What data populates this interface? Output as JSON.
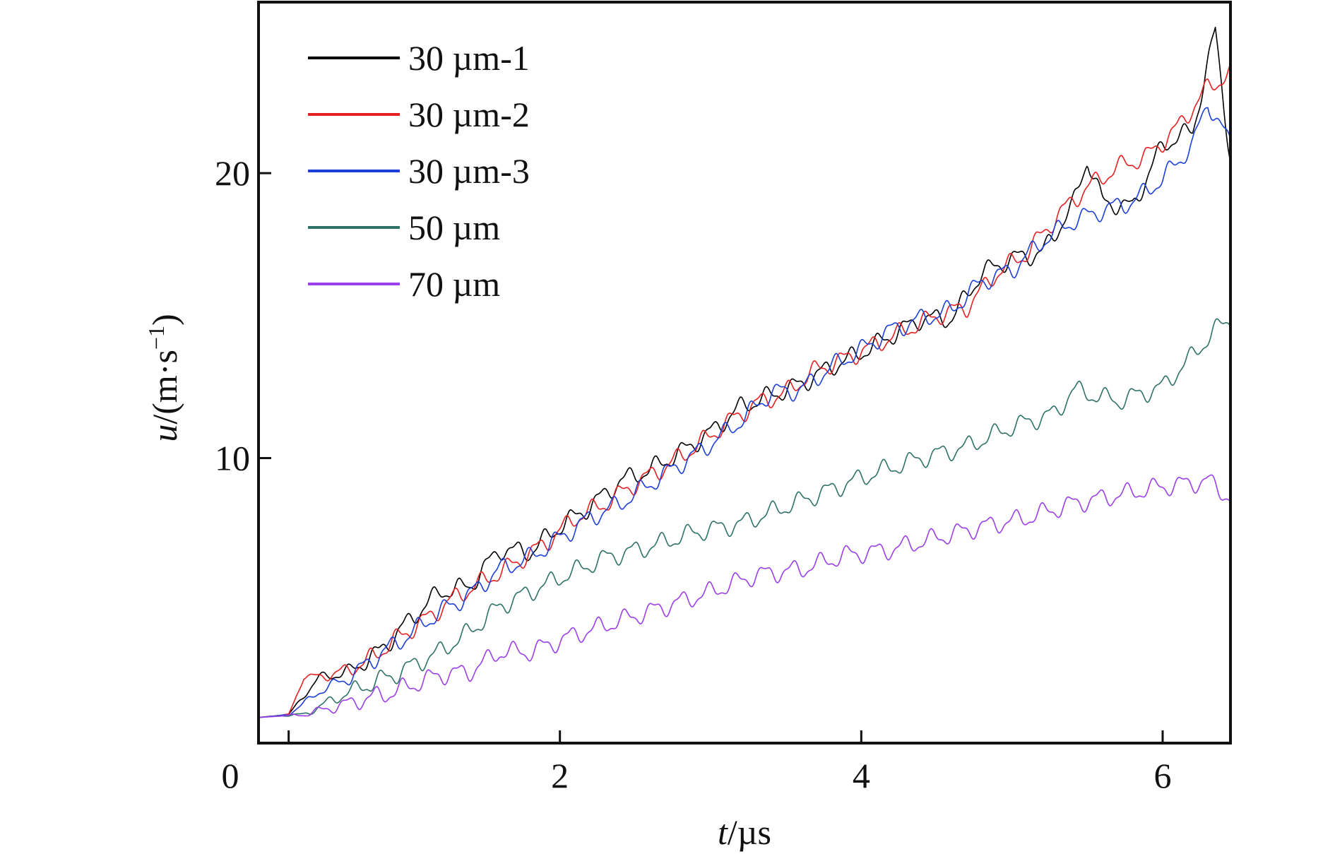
{
  "chart_data": {
    "type": "line",
    "xlabel": {
      "italic": "t",
      "rest": "/µs"
    },
    "ylabel": {
      "italic": "u",
      "rest": "/(m·s",
      "sup": "−1",
      "close": ")"
    },
    "xlim": [
      0,
      6.45
    ],
    "ylim": [
      0,
      26
    ],
    "xticks": [
      0,
      2,
      4,
      6
    ],
    "yticks": [
      10,
      20
    ],
    "legend_position": "top-left",
    "grid": false,
    "series": [
      {
        "name": "30 µm-1",
        "color": "#000000",
        "points": [
          [
            0,
            0.9
          ],
          [
            0.2,
            1.0
          ],
          [
            0.4,
            2.3
          ],
          [
            0.6,
            2.5
          ],
          [
            0.8,
            3.2
          ],
          [
            1.0,
            4.3
          ],
          [
            1.2,
            5.3
          ],
          [
            1.4,
            5.5
          ],
          [
            1.6,
            6.8
          ],
          [
            1.8,
            6.7
          ],
          [
            2.0,
            7.6
          ],
          [
            2.2,
            8.3
          ],
          [
            2.4,
            9.2
          ],
          [
            2.6,
            9.6
          ],
          [
            2.8,
            10.2
          ],
          [
            3.0,
            10.9
          ],
          [
            3.2,
            11.8
          ],
          [
            3.4,
            12.2
          ],
          [
            3.6,
            12.6
          ],
          [
            3.8,
            13.2
          ],
          [
            4.0,
            13.7
          ],
          [
            4.2,
            14.3
          ],
          [
            4.4,
            14.9
          ],
          [
            4.6,
            14.9
          ],
          [
            4.8,
            16.5
          ],
          [
            5.0,
            17.0
          ],
          [
            5.2,
            17.2
          ],
          [
            5.4,
            18.8
          ],
          [
            5.5,
            20.5
          ],
          [
            5.6,
            19.0
          ],
          [
            5.8,
            18.8
          ],
          [
            6.0,
            21.0
          ],
          [
            6.2,
            21.5
          ],
          [
            6.35,
            25.0
          ],
          [
            6.45,
            20.5
          ]
        ]
      },
      {
        "name": "30 µm-2",
        "color": "#e52020",
        "points": [
          [
            0,
            0.9
          ],
          [
            0.2,
            1.0
          ],
          [
            0.3,
            2.3
          ],
          [
            0.5,
            2.4
          ],
          [
            0.7,
            2.8
          ],
          [
            0.9,
            3.6
          ],
          [
            1.1,
            4.3
          ],
          [
            1.3,
            5.1
          ],
          [
            1.5,
            5.7
          ],
          [
            1.7,
            6.3
          ],
          [
            1.9,
            7.0
          ],
          [
            2.1,
            7.9
          ],
          [
            2.3,
            8.4
          ],
          [
            2.5,
            9.1
          ],
          [
            2.7,
            9.7
          ],
          [
            2.9,
            10.4
          ],
          [
            3.1,
            11.2
          ],
          [
            3.3,
            11.9
          ],
          [
            3.5,
            12.3
          ],
          [
            3.7,
            13.1
          ],
          [
            3.9,
            13.5
          ],
          [
            4.1,
            14.0
          ],
          [
            4.3,
            14.5
          ],
          [
            4.5,
            15.0
          ],
          [
            4.7,
            15.3
          ],
          [
            4.9,
            16.5
          ],
          [
            5.1,
            17.2
          ],
          [
            5.3,
            18.5
          ],
          [
            5.5,
            19.5
          ],
          [
            5.7,
            20.2
          ],
          [
            5.9,
            20.6
          ],
          [
            6.1,
            21.6
          ],
          [
            6.3,
            23.0
          ],
          [
            6.45,
            23.5
          ]
        ]
      },
      {
        "name": "30 µm-3",
        "color": "#1c3fd8",
        "points": [
          [
            0,
            0.9
          ],
          [
            0.2,
            1.0
          ],
          [
            0.4,
            1.8
          ],
          [
            0.6,
            2.3
          ],
          [
            0.8,
            3.1
          ],
          [
            1.0,
            3.8
          ],
          [
            1.2,
            4.6
          ],
          [
            1.4,
            5.2
          ],
          [
            1.6,
            6.1
          ],
          [
            1.8,
            6.5
          ],
          [
            2.0,
            7.2
          ],
          [
            2.2,
            7.9
          ],
          [
            2.4,
            8.4
          ],
          [
            2.6,
            9.1
          ],
          [
            2.8,
            9.8
          ],
          [
            3.0,
            10.5
          ],
          [
            3.2,
            11.3
          ],
          [
            3.4,
            12.3
          ],
          [
            3.6,
            12.4
          ],
          [
            3.8,
            13.2
          ],
          [
            4.0,
            13.8
          ],
          [
            4.2,
            14.5
          ],
          [
            4.4,
            14.9
          ],
          [
            4.6,
            15.2
          ],
          [
            4.8,
            16.2
          ],
          [
            5.0,
            16.6
          ],
          [
            5.2,
            17.6
          ],
          [
            5.4,
            18.3
          ],
          [
            5.6,
            18.7
          ],
          [
            5.8,
            19.0
          ],
          [
            6.0,
            19.8
          ],
          [
            6.2,
            21.0
          ],
          [
            6.3,
            22.5
          ],
          [
            6.45,
            21.0
          ]
        ]
      },
      {
        "name": "50 µm",
        "color": "#2e7268",
        "points": [
          [
            0,
            0.9
          ],
          [
            0.3,
            1.0
          ],
          [
            0.6,
            1.8
          ],
          [
            0.9,
            2.4
          ],
          [
            1.2,
            3.2
          ],
          [
            1.4,
            3.9
          ],
          [
            1.6,
            4.8
          ],
          [
            1.8,
            5.3
          ],
          [
            2.0,
            5.8
          ],
          [
            2.3,
            6.5
          ],
          [
            2.6,
            6.9
          ],
          [
            2.9,
            7.4
          ],
          [
            3.2,
            7.7
          ],
          [
            3.5,
            8.3
          ],
          [
            3.8,
            8.9
          ],
          [
            4.1,
            9.5
          ],
          [
            4.4,
            10.0
          ],
          [
            4.7,
            10.4
          ],
          [
            5.0,
            11.1
          ],
          [
            5.3,
            11.6
          ],
          [
            5.4,
            12.4
          ],
          [
            5.7,
            12.0
          ],
          [
            6.0,
            12.5
          ],
          [
            6.2,
            13.6
          ],
          [
            6.35,
            14.5
          ],
          [
            6.45,
            14.9
          ]
        ]
      },
      {
        "name": "70 µm",
        "color": "#9b3fe8",
        "points": [
          [
            0,
            0.9
          ],
          [
            0.3,
            1.0
          ],
          [
            0.6,
            1.4
          ],
          [
            0.9,
            1.8
          ],
          [
            1.2,
            2.4
          ],
          [
            1.4,
            2.5
          ],
          [
            1.6,
            3.2
          ],
          [
            1.8,
            3.2
          ],
          [
            2.1,
            3.8
          ],
          [
            2.4,
            4.3
          ],
          [
            2.7,
            4.8
          ],
          [
            3.0,
            5.3
          ],
          [
            3.3,
            5.9
          ],
          [
            3.6,
            6.1
          ],
          [
            3.9,
            6.6
          ],
          [
            4.2,
            6.8
          ],
          [
            4.5,
            7.2
          ],
          [
            4.8,
            7.6
          ],
          [
            5.1,
            7.9
          ],
          [
            5.4,
            8.4
          ],
          [
            5.7,
            8.7
          ],
          [
            6.0,
            9.0
          ],
          [
            6.3,
            9.2
          ],
          [
            6.45,
            8.6
          ]
        ]
      }
    ]
  }
}
